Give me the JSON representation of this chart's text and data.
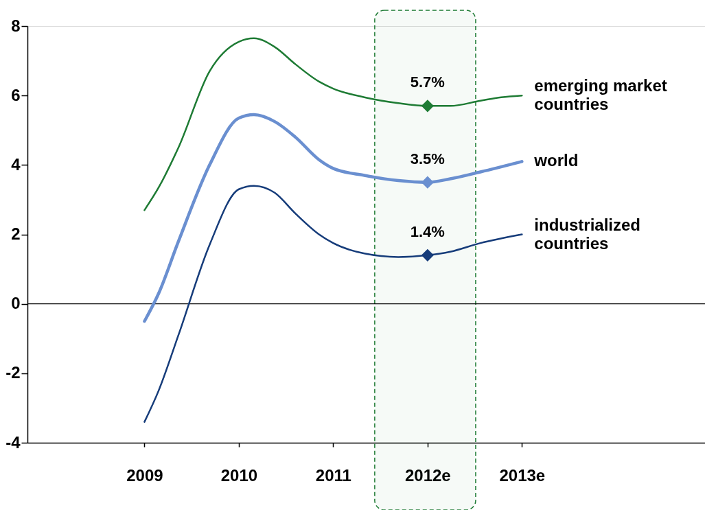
{
  "chart_data": {
    "type": "line",
    "xlim": [
      2007.76,
      2014.94
    ],
    "xticks": [
      2009,
      2010,
      2011,
      {
        "value": 2012,
        "label": "2012e"
      },
      {
        "value": 2013,
        "label": "2013e"
      }
    ],
    "ylim": [
      -4,
      8
    ],
    "yticks": [
      -4,
      -2,
      0,
      2,
      4,
      6,
      8
    ],
    "grid": false,
    "line_style": "solid",
    "series": [
      {
        "name": "emerging market countries",
        "color": "#1e7b34",
        "x": [
          2009,
          2009.15,
          2009.36,
          2009.69,
          2010.0,
          2010.16,
          2010.38,
          2010.6,
          2010.85,
          2011.0,
          2011.33,
          2011.69,
          2012.0,
          2012.24,
          2012.56,
          2012.78,
          2013.0
        ],
        "values": [
          2.7,
          3.35,
          4.5,
          6.7,
          7.55,
          7.65,
          7.4,
          6.9,
          6.4,
          6.2,
          5.95,
          5.78,
          5.7,
          5.7,
          5.85,
          5.95,
          6.0
        ]
      },
      {
        "name": "world",
        "color": "#6a8fd0",
        "x": [
          2009,
          2009.15,
          2009.36,
          2009.69,
          2010.0,
          2010.16,
          2010.38,
          2010.6,
          2010.85,
          2011.0,
          2011.33,
          2011.69,
          2012.0,
          2012.24,
          2012.56,
          2013.0
        ],
        "values": [
          -0.5,
          0.3,
          1.8,
          4.0,
          5.35,
          5.45,
          5.25,
          4.8,
          4.15,
          3.9,
          3.7,
          3.55,
          3.5,
          3.6,
          3.8,
          4.1
        ]
      },
      {
        "name": "industrialized countries",
        "color": "#163c7a",
        "x": [
          2009,
          2009.15,
          2009.36,
          2009.69,
          2010.0,
          2010.16,
          2010.38,
          2010.6,
          2010.85,
          2011.0,
          2011.33,
          2011.69,
          2012.0,
          2012.24,
          2012.56,
          2013.0
        ],
        "values": [
          -3.4,
          -2.5,
          -0.9,
          1.7,
          3.3,
          3.4,
          3.2,
          2.6,
          2.0,
          1.75,
          1.45,
          1.35,
          1.4,
          1.5,
          1.75,
          2.0
        ]
      },
      {
        "type": "scatter",
        "marker": "diamond",
        "color": "#1e7b34",
        "x": [
          2012
        ],
        "values": [
          5.7
        ],
        "value_labels": [
          "5.7%"
        ]
      },
      {
        "type": "scatter",
        "marker": "diamond",
        "color": "#6a8fd0",
        "x": [
          2012
        ],
        "values": [
          3.5
        ],
        "value_labels": [
          "3.5%"
        ]
      },
      {
        "type": "scatter",
        "marker": "diamond",
        "color": "#163c7a",
        "x": [
          2012
        ],
        "values": [
          1.4
        ],
        "value_labels": [
          "1.4%"
        ]
      }
    ],
    "ref_lines": [
      {
        "axis": "y",
        "value": 0,
        "color": "#000000"
      }
    ],
    "bands": [
      {
        "axis": "x",
        "from": 2011.44,
        "to": 2012.51,
        "color": "#1e7b34"
      }
    ]
  }
}
